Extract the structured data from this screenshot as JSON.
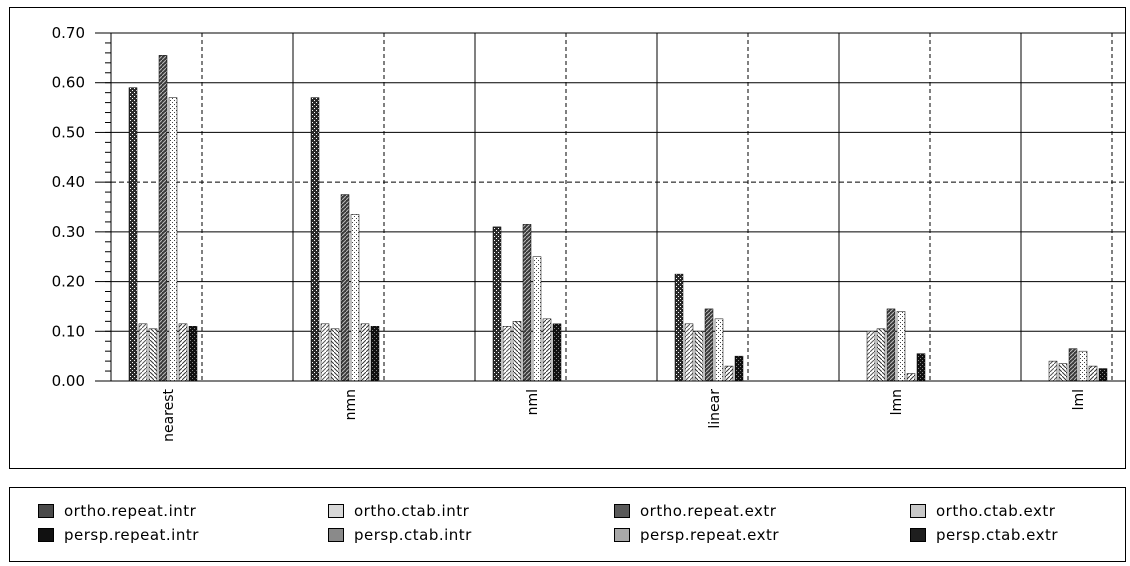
{
  "chart_data": {
    "type": "bar",
    "categories": [
      "nearest",
      "nmn",
      "nml",
      "linear",
      "lmn",
      "lml"
    ],
    "y_ticks": [
      "0.00",
      "0.10",
      "0.20",
      "0.30",
      "0.40",
      "0.50",
      "0.60",
      "0.70"
    ],
    "ylim": [
      0,
      0.7
    ],
    "grid": true,
    "legend_position": "bottom",
    "series": [
      {
        "name": "ortho.repeat.intr",
        "values": [
          0.59,
          0.57,
          0.31,
          0.215,
          null,
          null
        ]
      },
      {
        "name": "ortho.ctab.intr",
        "values": [
          0.115,
          0.115,
          0.11,
          0.115,
          0.1,
          0.04
        ]
      },
      {
        "name": "persp.ctab.intr",
        "values": [
          0.105,
          0.105,
          0.12,
          0.1,
          0.105,
          0.035
        ]
      },
      {
        "name": "ortho.repeat.extr",
        "values": [
          0.655,
          0.375,
          0.315,
          0.145,
          0.145,
          0.065
        ]
      },
      {
        "name": "persp.repeat.extr",
        "values": [
          0.57,
          0.335,
          0.25,
          0.125,
          0.14,
          0.06
        ]
      },
      {
        "name": "ortho.ctab.extr",
        "values": [
          0.115,
          0.115,
          0.125,
          0.03,
          0.015,
          0.03
        ]
      },
      {
        "name": "persp.ctab.extr",
        "values": [
          0.11,
          0.11,
          0.115,
          0.05,
          0.055,
          0.025
        ]
      },
      {
        "name": "persp.repeat.intr",
        "values": [
          null,
          null,
          null,
          null,
          null,
          null
        ]
      }
    ],
    "legend": [
      {
        "label": "ortho.repeat.intr",
        "color": "#4a4a4a"
      },
      {
        "label": "ortho.ctab.intr",
        "color": "#d8d8d8"
      },
      {
        "label": "ortho.repeat.extr",
        "color": "#5a5a5a"
      },
      {
        "label": "ortho.ctab.extr",
        "color": "#c8c8c8"
      },
      {
        "label": "persp.repeat.intr",
        "color": "#111111"
      },
      {
        "label": "persp.ctab.intr",
        "color": "#8a8a8a"
      },
      {
        "label": "persp.repeat.extr",
        "color": "#a8a8a8"
      },
      {
        "label": "persp.ctab.extr",
        "color": "#1e1e1e"
      }
    ]
  }
}
